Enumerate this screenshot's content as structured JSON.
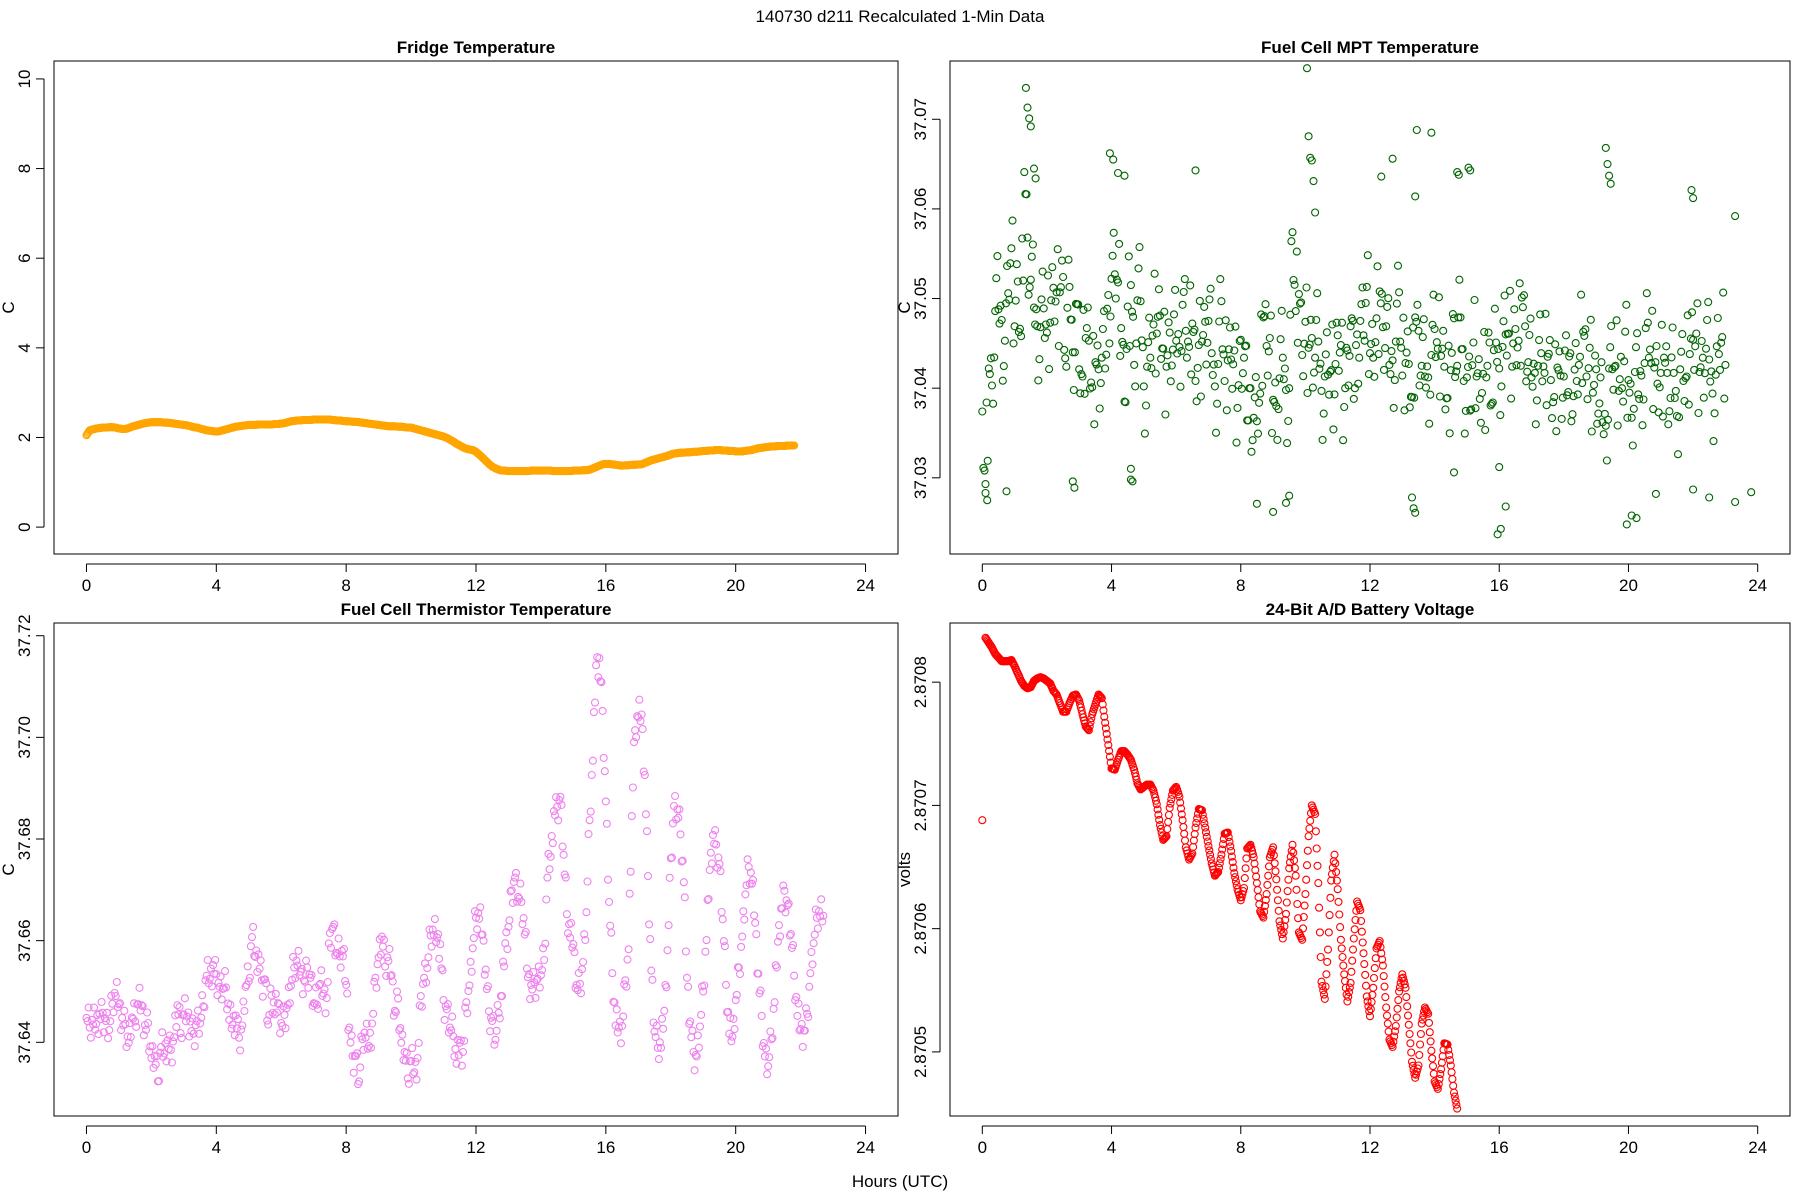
{
  "figure": {
    "suptitle": "140730   d211   Recalculated 1-Min Data",
    "xlabel": "Hours (UTC)"
  },
  "chart_data": [
    {
      "id": "fridge",
      "type": "scatter",
      "title": "Fridge Temperature",
      "ylabel": "C",
      "xlim": [
        -1,
        25
      ],
      "ylim": [
        -0.6,
        10.4
      ],
      "xticks": [
        0,
        4,
        8,
        12,
        16,
        20,
        24
      ],
      "yticks": [
        0,
        2,
        4,
        6,
        8,
        10
      ],
      "ytick_labels": [
        "0",
        "2",
        "4",
        "6",
        "8",
        "10"
      ],
      "color": "#FFA500",
      "x_step_hours": 0.1,
      "values": [
        2.05,
        2.16,
        2.18,
        2.2,
        2.21,
        2.22,
        2.22,
        2.23,
        2.23,
        2.22,
        2.2,
        2.19,
        2.19,
        2.21,
        2.24,
        2.26,
        2.28,
        2.3,
        2.32,
        2.33,
        2.34,
        2.34,
        2.34,
        2.34,
        2.33,
        2.33,
        2.32,
        2.31,
        2.3,
        2.29,
        2.28,
        2.27,
        2.25,
        2.23,
        2.22,
        2.2,
        2.18,
        2.16,
        2.15,
        2.14,
        2.13,
        2.14,
        2.16,
        2.18,
        2.2,
        2.22,
        2.24,
        2.25,
        2.26,
        2.27,
        2.28,
        2.28,
        2.28,
        2.29,
        2.29,
        2.29,
        2.29,
        2.29,
        2.3,
        2.3,
        2.31,
        2.32,
        2.34,
        2.36,
        2.37,
        2.38,
        2.38,
        2.39,
        2.39,
        2.39,
        2.4,
        2.4,
        2.4,
        2.4,
        2.4,
        2.4,
        2.39,
        2.38,
        2.38,
        2.37,
        2.36,
        2.36,
        2.35,
        2.35,
        2.34,
        2.33,
        2.32,
        2.31,
        2.3,
        2.29,
        2.28,
        2.27,
        2.26,
        2.25,
        2.25,
        2.25,
        2.24,
        2.24,
        2.23,
        2.22,
        2.22,
        2.2,
        2.18,
        2.16,
        2.14,
        2.12,
        2.1,
        2.08,
        2.06,
        2.04,
        2.02,
        1.99,
        1.95,
        1.91,
        1.86,
        1.82,
        1.78,
        1.75,
        1.73,
        1.72,
        1.68,
        1.62,
        1.55,
        1.48,
        1.41,
        1.35,
        1.31,
        1.28,
        1.26,
        1.26,
        1.25,
        1.25,
        1.25,
        1.25,
        1.25,
        1.25,
        1.25,
        1.26,
        1.26,
        1.26,
        1.26,
        1.26,
        1.26,
        1.26,
        1.25,
        1.25,
        1.25,
        1.25,
        1.25,
        1.25,
        1.26,
        1.26,
        1.26,
        1.27,
        1.27,
        1.28,
        1.31,
        1.34,
        1.37,
        1.4,
        1.41,
        1.41,
        1.4,
        1.39,
        1.38,
        1.37,
        1.38,
        1.38,
        1.39,
        1.39,
        1.4,
        1.4,
        1.43,
        1.46,
        1.49,
        1.51,
        1.53,
        1.55,
        1.57,
        1.59,
        1.62,
        1.64,
        1.65,
        1.66,
        1.66,
        1.67,
        1.67,
        1.68,
        1.68,
        1.69,
        1.7,
        1.7,
        1.71,
        1.71,
        1.72,
        1.72,
        1.71,
        1.71,
        1.7,
        1.7,
        1.69,
        1.69,
        1.69,
        1.7,
        1.71,
        1.72,
        1.74,
        1.76,
        1.77,
        1.78,
        1.79,
        1.8,
        1.8,
        1.81,
        1.81,
        1.81,
        1.82,
        1.82,
        1.82
      ]
    },
    {
      "id": "mpt",
      "type": "scatter",
      "title": "Fuel Cell MPT Temperature",
      "ylabel": "C",
      "xlim": [
        -1,
        25
      ],
      "ylim": [
        37.0215,
        37.0765
      ],
      "xticks": [
        0,
        4,
        8,
        12,
        16,
        20,
        24
      ],
      "yticks": [
        37.03,
        37.04,
        37.05,
        37.06,
        37.07
      ],
      "ytick_labels": [
        "37.03",
        "37.04",
        "37.05",
        "37.06",
        "37.07"
      ],
      "color": "#006400",
      "x_step_hours": 0.1,
      "values": [
        37.0374,
        37.0293,
        37.0422,
        37.0403,
        37.0486,
        37.0488,
        37.0476,
        37.0453,
        37.0506,
        37.0556,
        37.0469,
        37.0519,
        37.0458,
        37.0641,
        37.0568,
        37.0521,
        37.049,
        37.0469,
        37.0468,
        37.0489,
        37.0462,
        37.0473,
        37.0512,
        37.0507,
        37.0507,
        37.0524,
        37.0424,
        37.0513,
        37.044,
        37.0494,
        37.0421,
        37.0413,
        37.0456,
        37.0453,
        37.0401,
        37.0429,
        37.0421,
        37.0434,
        37.0422,
        37.0504,
        37.0522,
        37.0527,
        37.0518,
        37.0467,
        37.0385,
        37.0491,
        37.0515,
        37.0426,
        37.0498,
        37.0497,
        37.0402,
        37.0424,
        37.0434,
        37.0471,
        37.0461,
        37.0481,
        37.0444,
        37.0424,
        37.0462,
        37.0443,
        37.0453,
        37.0446,
        37.0493,
        37.0464,
        37.0446,
        37.0472,
        37.0408,
        37.0448,
        37.0452,
        37.0474,
        37.0475,
        37.0439,
        37.0402,
        37.0427,
        37.0497,
        37.0408,
        37.0431,
        37.0432,
        37.0442,
        37.0378,
        37.0454,
        37.0434,
        37.0364,
        37.04,
        37.0367,
        37.0363,
        37.0394,
        37.0479,
        37.0447,
        37.0456,
        37.0387,
        37.038,
        37.0411,
        37.0434,
        37.0398,
        37.04,
        37.0574,
        37.0486,
        37.0505,
        37.0437,
        37.0474,
        37.0445,
        37.0456,
        37.0434,
        37.0452,
        37.0397,
        37.0413,
        37.0415,
        37.042,
        37.0393,
        37.0459,
        37.0448,
        37.0379,
        37.0442,
        37.0469,
        37.0388,
        37.046,
        37.0475,
        37.0459,
        37.0513,
        37.0439,
        37.0434,
        37.0478,
        37.0508,
        37.0468,
        37.0469,
        37.0426,
        37.0431,
        37.0452,
        37.0507,
        37.0414,
        37.0428,
        37.0427,
        37.039,
        37.0479,
        37.0464,
        37.0425,
        37.0413,
        37.0412,
        37.0437,
        37.0466,
        37.0444,
        37.0436,
        37.0424,
        37.0389,
        37.042,
        37.0478,
        37.0425,
        37.0479,
        37.0408,
        37.0412,
        37.0375,
        37.0451,
        37.0413,
        37.0388,
        37.0416,
        37.0412,
        37.0451,
        37.0384,
        37.0451,
        37.0422,
        37.0446,
        37.046,
        37.0461,
        37.0424,
        37.0466,
        37.0453,
        37.0501,
        37.0469,
        37.0429,
        37.0412,
        37.0417,
        37.0425,
        37.0439,
        37.0417,
        37.0435,
        37.0409,
        37.039,
        37.0423,
        37.0414,
        37.0413,
        37.0392,
        37.0439,
        37.0391,
        37.0408,
        37.0435,
        37.0463,
        37.0413,
        37.0445,
        37.0395,
        37.0421,
        37.0383,
        37.0362,
        37.0358,
        37.0422,
        37.0421,
        37.0425,
        37.0397,
        37.04,
        37.0463,
        37.0409,
        37.0367,
        37.0418,
        37.0393,
        37.0414,
        37.0428,
        37.0473,
        37.0428,
        37.0423,
        37.0405,
        37.0417,
        37.0434,
        37.0417,
        37.0389,
        37.0417,
        37.0369,
        37.0421,
        37.0408,
        37.0413,
        37.0438,
        37.0454,
        37.0461,
        37.0418,
        37.0434,
        37.0444,
        37.0432,
        37.0394,
        37.0415,
        37.0438,
        37.0457,
        37.0426
      ],
      "outliers": [
        [
          1.35,
          37.0735
        ],
        [
          1.4,
          37.0713
        ],
        [
          1.45,
          37.0701
        ],
        [
          1.5,
          37.0692
        ],
        [
          1.6,
          37.0645
        ],
        [
          1.65,
          37.0634
        ],
        [
          3.95,
          37.0662
        ],
        [
          4.05,
          37.0655
        ],
        [
          4.2,
          37.064
        ],
        [
          4.4,
          37.0637
        ],
        [
          6.6,
          37.0643
        ],
        [
          10.05,
          37.0757
        ],
        [
          10.1,
          37.0681
        ],
        [
          10.15,
          37.0657
        ],
        [
          10.2,
          37.0654
        ],
        [
          10.25,
          37.0631
        ],
        [
          10.3,
          37.0596
        ],
        [
          12.35,
          37.0636
        ],
        [
          12.7,
          37.0656
        ],
        [
          13.4,
          37.0614
        ],
        [
          13.45,
          37.0688
        ],
        [
          13.9,
          37.0685
        ],
        [
          14.7,
          37.0641
        ],
        [
          14.75,
          37.0638
        ],
        [
          15.05,
          37.0646
        ],
        [
          15.1,
          37.0643
        ],
        [
          19.3,
          37.0668
        ],
        [
          19.35,
          37.065
        ],
        [
          19.4,
          37.0637
        ],
        [
          19.45,
          37.0628
        ],
        [
          21.95,
          37.0621
        ],
        [
          22.0,
          37.0612
        ],
        [
          23.3,
          37.0592
        ],
        [
          0.1,
          37.0283
        ],
        [
          0.15,
          37.0275
        ],
        [
          0.75,
          37.0285
        ],
        [
          2.8,
          37.0296
        ],
        [
          2.85,
          37.0289
        ],
        [
          4.6,
          37.0298
        ],
        [
          4.65,
          37.0296
        ],
        [
          4.6,
          37.031
        ],
        [
          8.5,
          37.0271
        ],
        [
          9.0,
          37.0262
        ],
        [
          9.4,
          37.0272
        ],
        [
          9.5,
          37.028
        ],
        [
          13.3,
          37.0278
        ],
        [
          13.35,
          37.0266
        ],
        [
          13.4,
          37.0261
        ],
        [
          14.6,
          37.0306
        ],
        [
          15.95,
          37.0237
        ],
        [
          16.05,
          37.0243
        ],
        [
          16.2,
          37.0268
        ],
        [
          16.0,
          37.0312
        ],
        [
          19.95,
          37.0248
        ],
        [
          20.1,
          37.0258
        ],
        [
          20.25,
          37.0255
        ],
        [
          20.85,
          37.0282
        ],
        [
          22.0,
          37.0287
        ],
        [
          22.5,
          37.0278
        ],
        [
          23.3,
          37.0273
        ],
        [
          23.8,
          37.0284
        ]
      ]
    },
    {
      "id": "thermistor",
      "type": "scatter",
      "title": "Fuel Cell Thermistor Temperature",
      "ylabel": "C",
      "xlim": [
        -1,
        25
      ],
      "ylim": [
        37.6255,
        37.7225
      ],
      "xticks": [
        0,
        4,
        8,
        12,
        16,
        20,
        24
      ],
      "yticks": [
        37.64,
        37.66,
        37.68,
        37.7,
        37.72
      ],
      "ytick_labels": [
        "37.64",
        "37.66",
        "37.68",
        "37.70",
        "37.72"
      ],
      "color": "#EE82EE",
      "x_step_hours": 0.1,
      "values": [
        37.6448,
        37.6429,
        37.6435,
        37.6436,
        37.6456,
        37.6458,
        37.6442,
        37.6424,
        37.6476,
        37.6491,
        37.6475,
        37.6448,
        37.6436,
        37.6399,
        37.6449,
        37.6441,
        37.6475,
        37.6473,
        37.6434,
        37.6438,
        37.6369,
        37.6373,
        37.6323,
        37.6391,
        37.6378,
        37.6404,
        37.6385,
        37.641,
        37.6473,
        37.6418,
        37.6455,
        37.6451,
        37.6441,
        37.6417,
        37.6442,
        37.6437,
        37.6471,
        37.6531,
        37.6525,
        37.6552,
        37.6534,
        37.6509,
        37.6505,
        37.6508,
        37.6444,
        37.6435,
        37.6453,
        37.6409,
        37.6433,
        37.6509,
        37.652,
        37.6607,
        37.6568,
        37.6573,
        37.6522,
        37.6524,
        37.6435,
        37.6492,
        37.6455,
        37.6477,
        37.6438,
        37.6454,
        37.6474,
        37.6511,
        37.6547,
        37.6551,
        37.6539,
        37.6522,
        37.6547,
        37.6527,
        37.6477,
        37.6474,
        37.6515,
        37.6496,
        37.6487,
        37.6615,
        37.6627,
        37.6576,
        37.6569,
        37.6569,
        37.6513,
        37.6429,
        37.6373,
        37.6373,
        37.6323,
        37.6406,
        37.6409,
        37.6393,
        37.6437,
        37.6527,
        37.6567,
        37.6608,
        37.6549,
        37.656,
        37.6532,
        37.6462,
        37.6486,
        37.6399,
        37.6381,
        37.6329,
        37.6363,
        37.6341,
        37.6369,
        37.6491,
        37.6527,
        37.6546,
        37.661,
        37.6611,
        37.6606,
        37.6593,
        37.6483,
        37.6465,
        37.6429,
        37.6412,
        37.6358,
        37.6399,
        37.6381,
        37.6479,
        37.6512,
        37.6585,
        37.6645,
        37.6643,
        37.6612,
        37.6543,
        37.6461,
        37.6442,
        37.6405,
        37.6458,
        37.6491,
        37.6595,
        37.6627,
        37.6699,
        37.6724,
        37.6686,
        37.6676,
        37.6612,
        37.6528,
        37.6513,
        37.6518,
        37.6525,
        37.6532,
        37.6562,
        37.6724,
        37.6765,
        37.6855,
        37.6863,
        37.6883,
        37.6769,
        37.6652,
        37.6606,
        37.6593,
        37.6513,
        37.6515,
        37.6558,
        37.6656,
        37.6837,
        37.6954,
        37.7142,
        37.7156,
        37.7052,
        37.6874,
        37.6676,
        37.6536,
        37.6433,
        37.6429,
        37.6432,
        37.6522,
        37.6583,
        37.6845,
        37.7014,
        37.7039,
        37.7045,
        37.6926,
        37.6727,
        37.6541,
        37.6421,
        37.6389,
        37.6389,
        37.6462,
        37.6581,
        37.6762,
        37.6865,
        37.6858,
        37.6809,
        37.6715,
        37.6527,
        37.6441,
        37.6381,
        37.6372,
        37.6431,
        37.65,
        37.6601,
        37.6739,
        37.6808,
        37.6789,
        37.6751,
        37.6642,
        37.6513,
        37.6417,
        37.6411,
        37.6483,
        37.6547,
        37.6608,
        37.6691,
        37.6745,
        37.6712,
        37.6635,
        37.6535,
        37.6452,
        37.6372,
        37.6353,
        37.6406,
        37.6479,
        37.6598,
        37.6663,
        37.6698,
        37.667,
        37.6613,
        37.6531,
        37.6452,
        37.6426,
        37.6423,
        37.6456,
        37.6536,
        37.6595,
        37.6645,
        37.6648,
        37.6649
      ]
    },
    {
      "id": "battery",
      "type": "scatter",
      "title": "24-Bit A/D Battery Voltage",
      "ylabel": "volts",
      "xlim": [
        -1,
        25
      ],
      "ylim": [
        2.870453,
        2.870853
      ],
      "xticks": [
        0,
        4,
        8,
        12,
        16,
        20,
        24
      ],
      "yticks": [
        2.8705,
        2.8706,
        2.8707,
        2.8708
      ],
      "ytick_labels": [
        "2.87050",
        "2.87060",
        "2.87070",
        "2.87080"
      ],
      "extra_ytick_labels": [
        {
          "value": 2.870505,
          "label": "2.8705"
        },
        {
          "value": 2.870605,
          "label": "2.8706"
        },
        {
          "value": 2.870705,
          "label": "2.8707"
        },
        {
          "value": 2.870805,
          "label": "2.8708"
        }
      ],
      "color": "#FF0000",
      "x_step_hours": 0.1,
      "first_point": [
        0.0,
        2.870693
      ],
      "values": [
        2.870841,
        2.870837,
        2.870833,
        2.870828,
        2.870825,
        2.870822,
        2.870822,
        2.870822,
        2.870823,
        2.870818,
        2.870812,
        2.870806,
        2.870802,
        2.8708,
        2.870801,
        2.870806,
        2.870808,
        2.870809,
        2.870808,
        2.870806,
        2.870804,
        2.870798,
        2.870795,
        2.870788,
        2.870781,
        2.870781,
        2.870788,
        2.870794,
        2.870795,
        2.87079,
        2.870779,
        2.870769,
        2.870766,
        2.870779,
        2.870787,
        2.870795,
        2.870792,
        2.870772,
        2.870754,
        2.870735,
        2.870734,
        2.870742,
        2.870749,
        2.870749,
        2.870746,
        2.870742,
        2.870734,
        2.870723,
        2.870718,
        2.87072,
        2.870722,
        2.870722,
        2.870717,
        2.870706,
        2.870689,
        2.870677,
        2.87068,
        2.870703,
        2.870717,
        2.87072,
        2.870712,
        2.870693,
        2.870671,
        2.870661,
        2.870666,
        2.870687,
        2.870702,
        2.870701,
        2.870687,
        2.870672,
        2.870658,
        2.870648,
        2.870651,
        2.870665,
        2.870682,
        2.870683,
        2.870668,
        2.87065,
        2.870637,
        2.870628,
        2.870638,
        2.87067,
        2.870673,
        2.870663,
        2.870642,
        2.870619,
        2.870614,
        2.870633,
        2.870663,
        2.870671,
        2.870645,
        2.870611,
        2.870597,
        2.870617,
        2.870654,
        2.870673,
        2.870648,
        2.870602,
        2.870596,
        2.870633,
        2.87068,
        2.870705,
        2.870698,
        2.870642,
        2.870562,
        2.870548,
        2.870588,
        2.870644,
        2.870665,
        2.870637,
        2.870596,
        2.870568,
        2.870546,
        2.870561,
        2.870597,
        2.870627,
        2.87062,
        2.870585,
        2.87055,
        2.870534,
        2.870557,
        2.870589,
        2.870595,
        2.870575,
        2.870541,
        2.870515,
        2.870509,
        2.870526,
        2.870554,
        2.870568,
        2.870557,
        2.870527,
        2.870497,
        2.870484,
        2.870494,
        2.870528,
        2.870541,
        2.870536,
        2.870506,
        2.870481,
        2.870475,
        2.870491,
        2.870512,
        2.870511,
        2.870494,
        2.870472,
        2.870459
      ]
    }
  ]
}
